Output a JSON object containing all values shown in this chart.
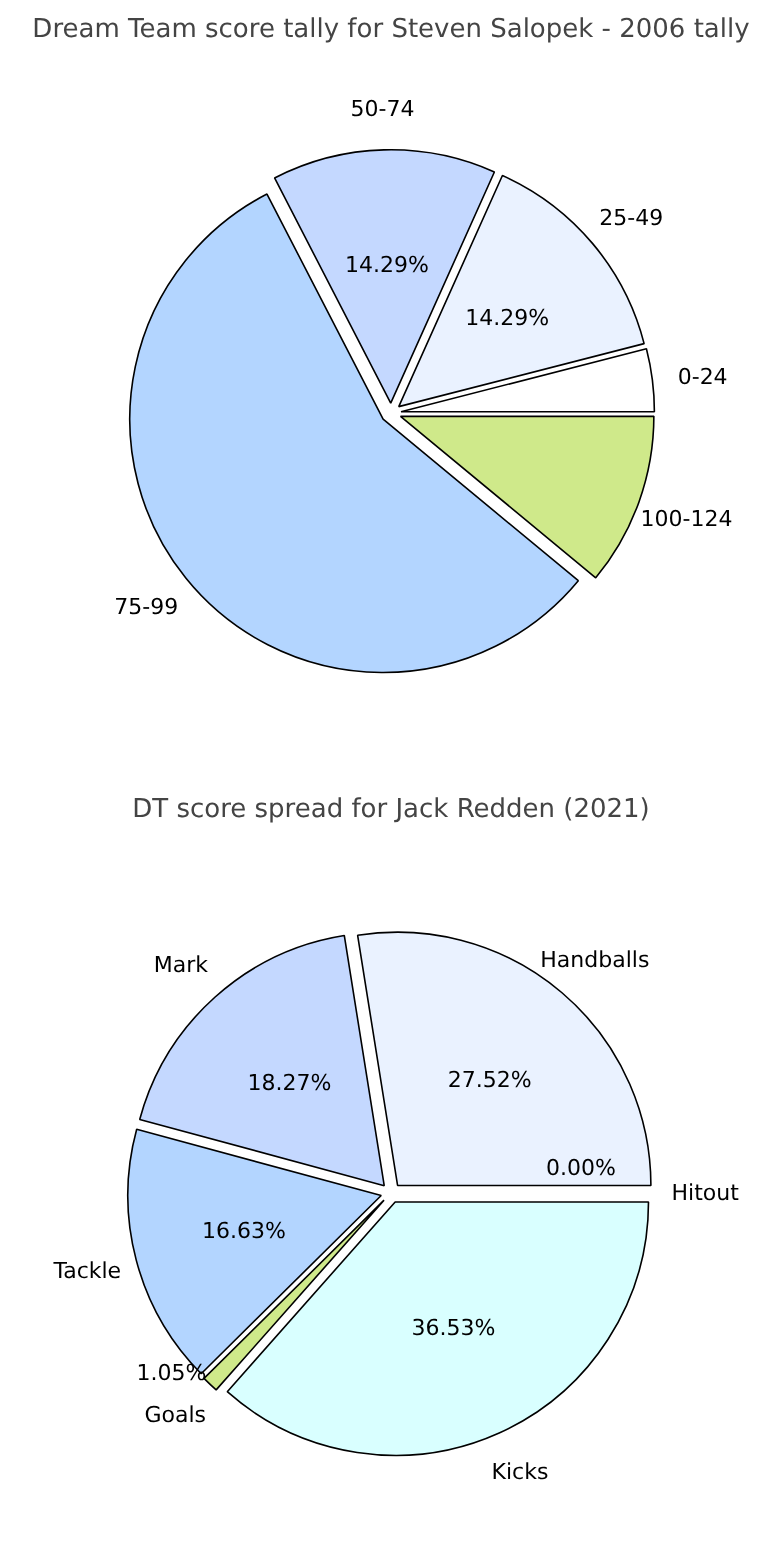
{
  "chart_data": [
    {
      "type": "pie",
      "title": "Dream Team score tally for Steven Salopek - 2006 tally",
      "categories": [
        "0-24",
        "25-49",
        "50-74",
        "75-99",
        "100-124"
      ],
      "values": [
        4,
        14.29,
        14.29,
        56.42,
        11
      ],
      "colors": [
        "#ffffff",
        "#eaf2ff",
        "#c4d8ff",
        "#b3d5ff",
        "#cfe98a"
      ],
      "value_labels": [
        null,
        "14.29%",
        "14.29%",
        null,
        null
      ]
    },
    {
      "type": "pie",
      "title": "DT score spread for Jack Redden (2021)",
      "categories": [
        "Hitout",
        "Handballs",
        "Mark",
        "Tackle",
        "Goals",
        "Kicks"
      ],
      "values": [
        0.0,
        27.52,
        18.27,
        16.63,
        1.05,
        36.53
      ],
      "colors": [
        "#ffffff",
        "#eaf2ff",
        "#c4d8ff",
        "#b3d5ff",
        "#cfe98a",
        "#d9ffff"
      ],
      "value_labels": [
        "0.00%",
        "27.52%",
        "18.27%",
        "16.63%",
        "1.05%",
        "36.53%"
      ]
    }
  ]
}
